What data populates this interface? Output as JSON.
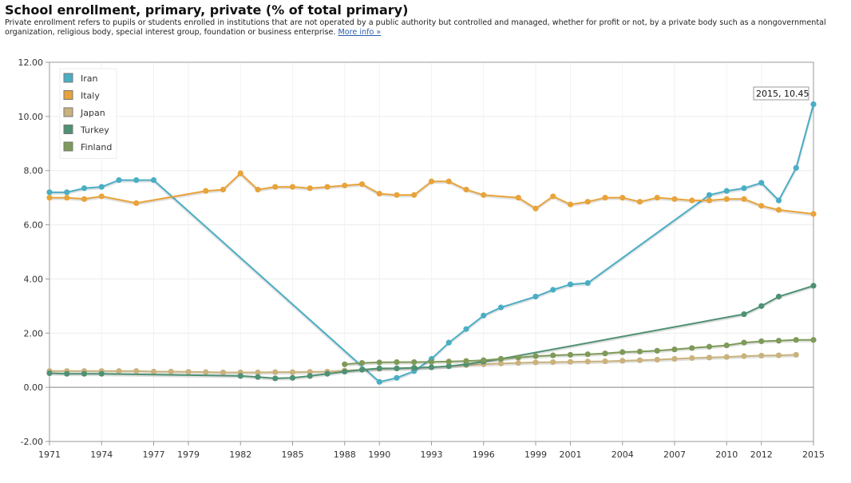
{
  "header": {
    "title": "School enrollment, primary, private (% of total primary)",
    "description": "Private enrollment refers to pupils or students enrolled in institutions that are not operated by a public authority but controlled and managed, whether for profit or not, by a private body such as a nongovernmental organization, religious body, special interest group, foundation or business enterprise.",
    "more_info": "More info »"
  },
  "tooltip": {
    "text": "2015, 10.45"
  },
  "chart_data": {
    "type": "line",
    "title": "School enrollment, primary, private (% of total primary)",
    "xlabel": "",
    "ylabel": "",
    "xlim": [
      1971,
      2015
    ],
    "ylim": [
      -2,
      12
    ],
    "y_ticks": [
      "-2.00",
      "0.00",
      "2.00",
      "4.00",
      "6.00",
      "8.00",
      "10.00",
      "12.00"
    ],
    "x_ticks": [
      "1971",
      "1974",
      "1977",
      "1979",
      "1982",
      "1985",
      "1988",
      "1990",
      "1993",
      "1996",
      "1999",
      "2001",
      "2004",
      "2007",
      "2010",
      "2012",
      "2015"
    ],
    "grid": true,
    "legend_position": "top-left",
    "series": [
      {
        "name": "Iran",
        "color": "#4aaec4",
        "points": [
          [
            1971,
            7.2
          ],
          [
            1972,
            7.2
          ],
          [
            1973,
            7.35
          ],
          [
            1974,
            7.4
          ],
          [
            1975,
            7.65
          ],
          [
            1976,
            7.65
          ],
          [
            1977,
            7.65
          ],
          [
            1990,
            0.2
          ],
          [
            1991,
            0.35
          ],
          [
            1992,
            0.6
          ],
          [
            1993,
            1.05
          ],
          [
            1994,
            1.65
          ],
          [
            1995,
            2.15
          ],
          [
            1996,
            2.65
          ],
          [
            1997,
            2.95
          ],
          [
            1999,
            3.35
          ],
          [
            2000,
            3.6
          ],
          [
            2001,
            3.8
          ],
          [
            2002,
            3.85
          ],
          [
            2009,
            7.1
          ],
          [
            2010,
            7.25
          ],
          [
            2011,
            7.35
          ],
          [
            2012,
            7.55
          ],
          [
            2013,
            6.9
          ],
          [
            2014,
            8.1
          ],
          [
            2015,
            10.45
          ]
        ]
      },
      {
        "name": "Italy",
        "color": "#e8a33a",
        "points": [
          [
            1971,
            7.0
          ],
          [
            1972,
            7.0
          ],
          [
            1973,
            6.95
          ],
          [
            1974,
            7.05
          ],
          [
            1976,
            6.8
          ],
          [
            1980,
            7.25
          ],
          [
            1981,
            7.3
          ],
          [
            1982,
            7.9
          ],
          [
            1983,
            7.3
          ],
          [
            1984,
            7.4
          ],
          [
            1985,
            7.4
          ],
          [
            1986,
            7.35
          ],
          [
            1987,
            7.4
          ],
          [
            1988,
            7.45
          ],
          [
            1989,
            7.5
          ],
          [
            1990,
            7.15
          ],
          [
            1991,
            7.1
          ],
          [
            1992,
            7.1
          ],
          [
            1993,
            7.6
          ],
          [
            1994,
            7.6
          ],
          [
            1995,
            7.3
          ],
          [
            1996,
            7.1
          ],
          [
            1998,
            7.0
          ],
          [
            1999,
            6.6
          ],
          [
            2000,
            7.05
          ],
          [
            2001,
            6.75
          ],
          [
            2002,
            6.85
          ],
          [
            2003,
            7.0
          ],
          [
            2004,
            7.0
          ],
          [
            2005,
            6.85
          ],
          [
            2006,
            7.0
          ],
          [
            2007,
            6.95
          ],
          [
            2008,
            6.9
          ],
          [
            2009,
            6.9
          ],
          [
            2010,
            6.95
          ],
          [
            2011,
            6.95
          ],
          [
            2012,
            6.7
          ],
          [
            2013,
            6.55
          ],
          [
            2015,
            6.4
          ]
        ]
      },
      {
        "name": "Japan",
        "color": "#c9b27c",
        "points": [
          [
            1971,
            0.6
          ],
          [
            1972,
            0.6
          ],
          [
            1973,
            0.6
          ],
          [
            1974,
            0.6
          ],
          [
            1975,
            0.6
          ],
          [
            1976,
            0.6
          ],
          [
            1977,
            0.58
          ],
          [
            1978,
            0.58
          ],
          [
            1979,
            0.57
          ],
          [
            1980,
            0.56
          ],
          [
            1981,
            0.55
          ],
          [
            1982,
            0.55
          ],
          [
            1983,
            0.55
          ],
          [
            1984,
            0.56
          ],
          [
            1985,
            0.56
          ],
          [
            1986,
            0.57
          ],
          [
            1987,
            0.58
          ],
          [
            1988,
            0.62
          ],
          [
            1989,
            0.65
          ],
          [
            1990,
            0.68
          ],
          [
            1991,
            0.7
          ],
          [
            1992,
            0.72
          ],
          [
            1993,
            0.74
          ],
          [
            1994,
            0.78
          ],
          [
            1995,
            0.82
          ],
          [
            1996,
            0.85
          ],
          [
            1997,
            0.88
          ],
          [
            1998,
            0.9
          ],
          [
            1999,
            0.92
          ],
          [
            2000,
            0.93
          ],
          [
            2001,
            0.94
          ],
          [
            2002,
            0.95
          ],
          [
            2003,
            0.96
          ],
          [
            2004,
            0.98
          ],
          [
            2005,
            1.0
          ],
          [
            2006,
            1.02
          ],
          [
            2007,
            1.05
          ],
          [
            2008,
            1.08
          ],
          [
            2009,
            1.1
          ],
          [
            2010,
            1.12
          ],
          [
            2011,
            1.15
          ],
          [
            2012,
            1.17
          ],
          [
            2013,
            1.18
          ],
          [
            2014,
            1.2
          ]
        ]
      },
      {
        "name": "Turkey",
        "color": "#4e9173",
        "points": [
          [
            1971,
            0.52
          ],
          [
            1972,
            0.5
          ],
          [
            1973,
            0.5
          ],
          [
            1974,
            0.5
          ],
          [
            1982,
            0.42
          ],
          [
            1983,
            0.38
          ],
          [
            1984,
            0.33
          ],
          [
            1985,
            0.35
          ],
          [
            1986,
            0.42
          ],
          [
            1987,
            0.5
          ],
          [
            1988,
            0.58
          ],
          [
            1989,
            0.65
          ],
          [
            1990,
            0.7
          ],
          [
            1991,
            0.7
          ],
          [
            1992,
            0.72
          ],
          [
            1993,
            0.74
          ],
          [
            1994,
            0.78
          ],
          [
            1995,
            0.85
          ],
          [
            1996,
            0.95
          ],
          [
            1997,
            1.05
          ],
          [
            2011,
            2.7
          ],
          [
            2012,
            3.0
          ],
          [
            2013,
            3.35
          ],
          [
            2015,
            3.75
          ]
        ]
      },
      {
        "name": "Finland",
        "color": "#7e9a58",
        "points": [
          [
            1988,
            0.85
          ],
          [
            1989,
            0.9
          ],
          [
            1990,
            0.92
          ],
          [
            1991,
            0.93
          ],
          [
            1992,
            0.93
          ],
          [
            1993,
            0.94
          ],
          [
            1994,
            0.95
          ],
          [
            1995,
            0.97
          ],
          [
            1996,
            1.0
          ],
          [
            1997,
            1.05
          ],
          [
            1998,
            1.1
          ],
          [
            1999,
            1.15
          ],
          [
            2000,
            1.18
          ],
          [
            2001,
            1.2
          ],
          [
            2002,
            1.22
          ],
          [
            2003,
            1.25
          ],
          [
            2004,
            1.3
          ],
          [
            2005,
            1.32
          ],
          [
            2006,
            1.35
          ],
          [
            2007,
            1.4
          ],
          [
            2008,
            1.45
          ],
          [
            2009,
            1.5
          ],
          [
            2010,
            1.55
          ],
          [
            2011,
            1.65
          ],
          [
            2012,
            1.7
          ],
          [
            2013,
            1.72
          ],
          [
            2014,
            1.75
          ],
          [
            2015,
            1.75
          ]
        ]
      }
    ]
  }
}
